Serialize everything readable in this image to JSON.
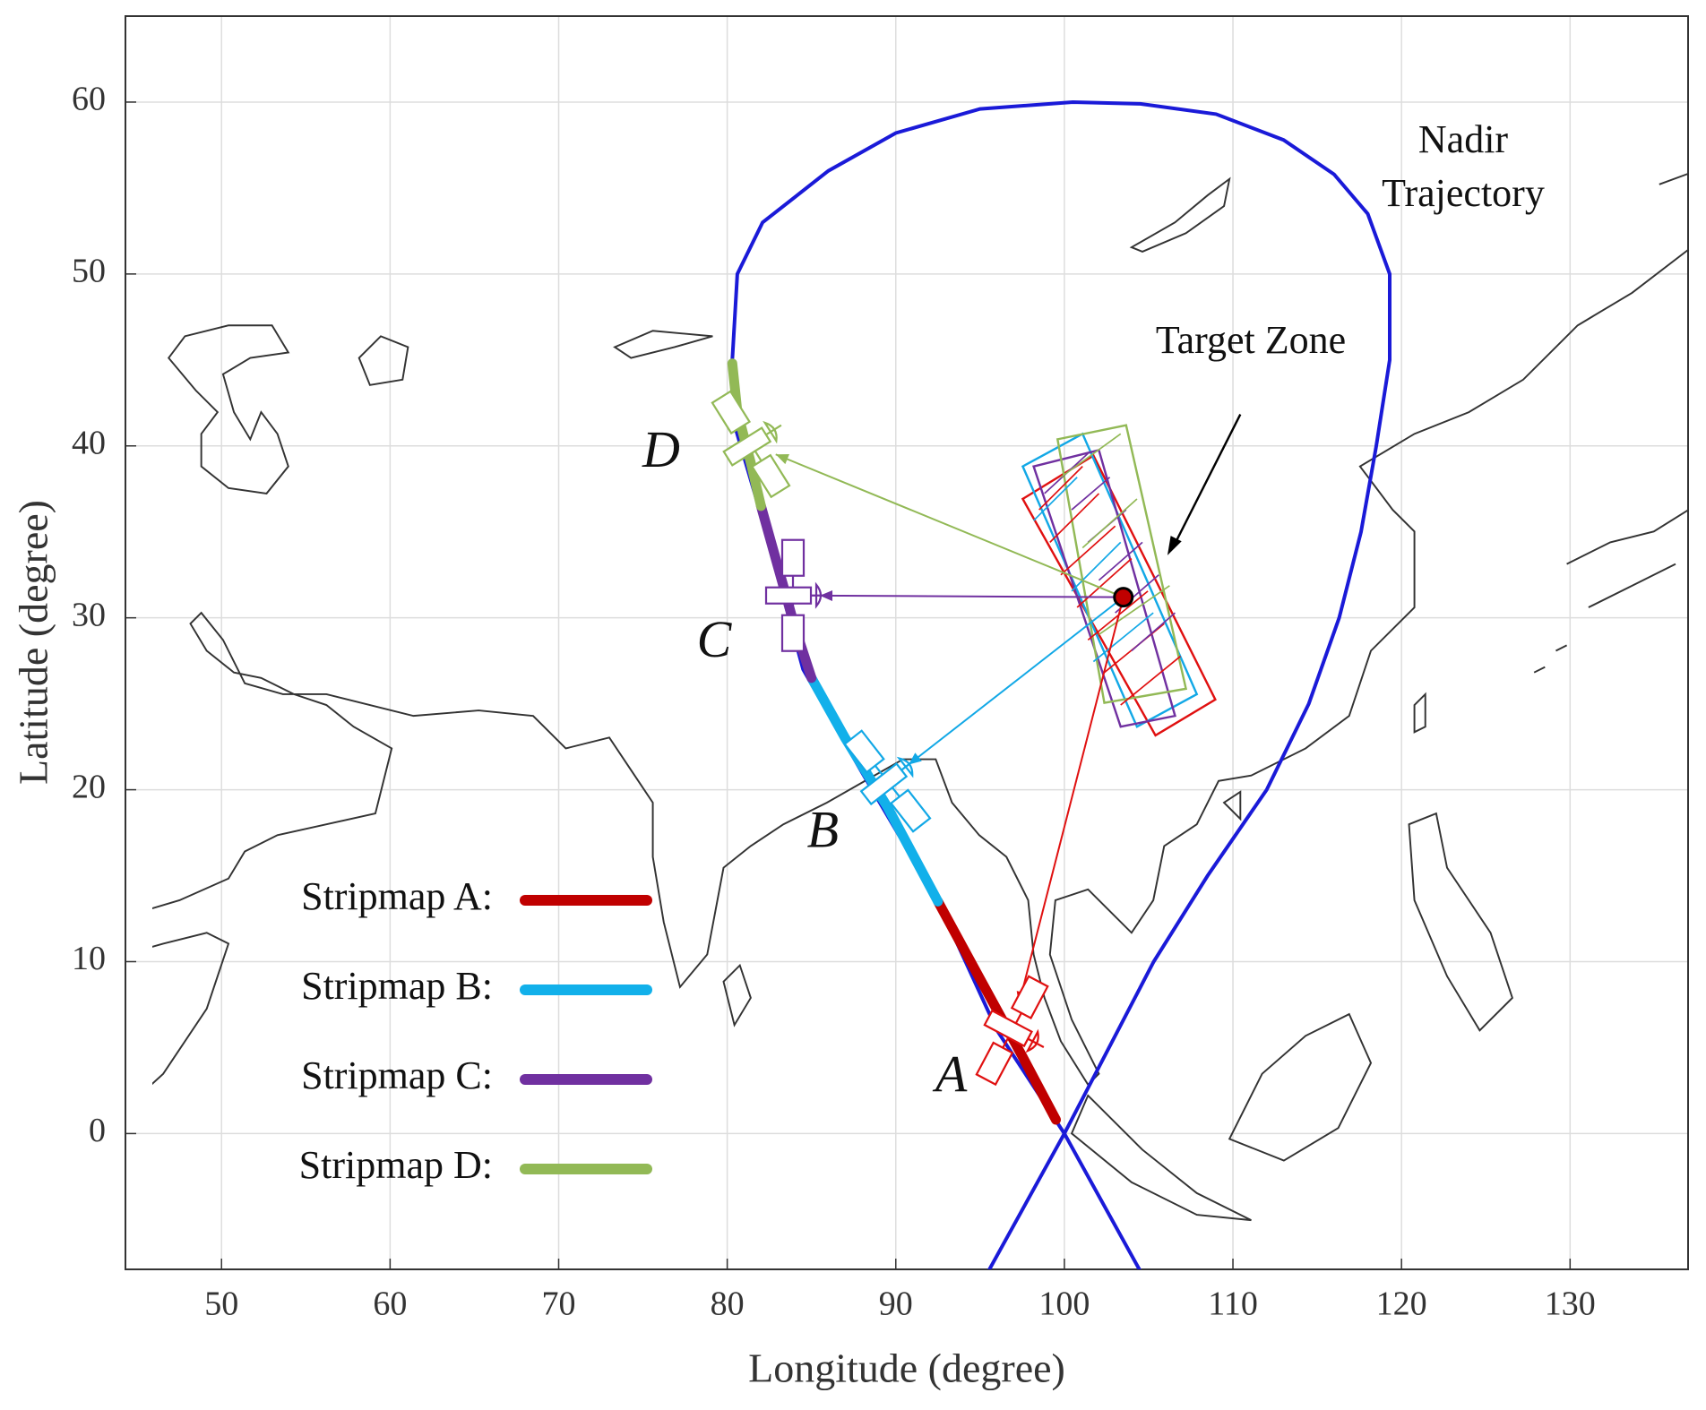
{
  "chart_data": {
    "type": "line",
    "x_label": "Longitude (degree)",
    "y_label": "Latitude (degree)",
    "xlim": [
      44.3,
      137
    ],
    "ylim": [
      -7.9,
      65
    ],
    "xticks": [
      50,
      60,
      70,
      80,
      90,
      100,
      110,
      120,
      130
    ],
    "yticks": [
      0,
      10,
      20,
      30,
      40,
      50,
      60
    ],
    "grid": true,
    "legend": "lower left",
    "trajectory": {
      "name": "Nadir Trajectory",
      "color": "#1a1ad8",
      "x": [
        95.5,
        100,
        105.3,
        108.5,
        112,
        114.5,
        116.3,
        117.6,
        118.5,
        119.3,
        119.3,
        118,
        116,
        113,
        109,
        104.5,
        100.5,
        95,
        90,
        86,
        82.1,
        80.6,
        80.3,
        80.5,
        82,
        84.5,
        88,
        92.5,
        96,
        100,
        104.5
      ],
      "values": [
        -8,
        0,
        10,
        15,
        20,
        25,
        30,
        35,
        40,
        45,
        50,
        53.5,
        55.8,
        57.8,
        59.3,
        59.9,
        60,
        59.6,
        58.2,
        56,
        53,
        50,
        45,
        41,
        36,
        27,
        21,
        13.5,
        6,
        0,
        -8
      ]
    },
    "series": [
      {
        "name": "Stripmap A:",
        "color": "#c00000",
        "x": [
          92.5,
          95,
          97.5,
          99.5
        ],
        "values": [
          13.5,
          9,
          4.5,
          0.8
        ]
      },
      {
        "name": "Stripmap B:",
        "color": "#12b0ea",
        "x": [
          85,
          87,
          89.5,
          92.5
        ],
        "values": [
          26.5,
          23,
          19,
          13.5
        ]
      },
      {
        "name": "Stripmap C:",
        "color": "#7030a0",
        "x": [
          82,
          83,
          84,
          85
        ],
        "values": [
          36.5,
          33,
          29.5,
          26.5
        ]
      },
      {
        "name": "Stripmap D:",
        "color": "#92b956",
        "x": [
          80.3,
          80.6,
          81.4,
          82
        ],
        "values": [
          44.8,
          42,
          39,
          36.5
        ]
      }
    ],
    "satellites": [
      {
        "label": "A",
        "lon": 96.9,
        "lat": 6.0,
        "color": "#e01010"
      },
      {
        "label": "B",
        "lon": 89.5,
        "lat": 20.5,
        "color": "#12a8e6"
      },
      {
        "label": "C",
        "lon": 83.9,
        "lat": 31.3,
        "color": "#7030a0"
      },
      {
        "label": "D",
        "lon": 81.4,
        "lat": 40.1,
        "color": "#92b956"
      }
    ],
    "target": {
      "label": "Target Zone",
      "lon": 103.5,
      "lat": 31.2,
      "color": "#c00000"
    }
  }
}
